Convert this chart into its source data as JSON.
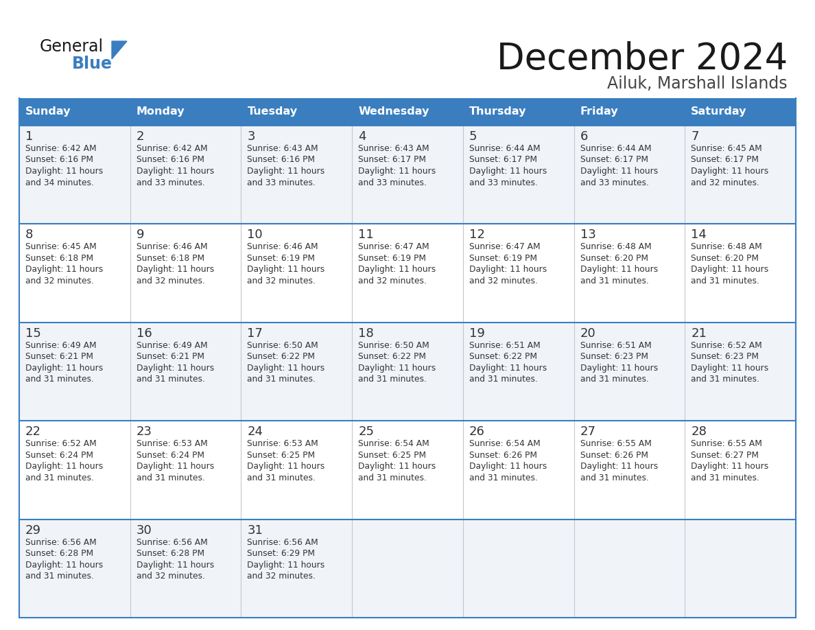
{
  "title": "December 2024",
  "subtitle": "Ailuk, Marshall Islands",
  "header_color": "#3a7ebf",
  "header_text_color": "#ffffff",
  "row_bg_odd": "#f0f4f8",
  "row_bg_even": "#ffffff",
  "border_color": "#3a7ebf",
  "col_sep_color": "#c0c8d0",
  "days_of_week": [
    "Sunday",
    "Monday",
    "Tuesday",
    "Wednesday",
    "Thursday",
    "Friday",
    "Saturday"
  ],
  "calendar_data": [
    [
      {
        "day": "1",
        "sunrise": "6:42 AM",
        "sunset": "6:16 PM",
        "daylight_h": "11 hours",
        "daylight_m": "and 34 minutes."
      },
      {
        "day": "2",
        "sunrise": "6:42 AM",
        "sunset": "6:16 PM",
        "daylight_h": "11 hours",
        "daylight_m": "and 33 minutes."
      },
      {
        "day": "3",
        "sunrise": "6:43 AM",
        "sunset": "6:16 PM",
        "daylight_h": "11 hours",
        "daylight_m": "and 33 minutes."
      },
      {
        "day": "4",
        "sunrise": "6:43 AM",
        "sunset": "6:17 PM",
        "daylight_h": "11 hours",
        "daylight_m": "and 33 minutes."
      },
      {
        "day": "5",
        "sunrise": "6:44 AM",
        "sunset": "6:17 PM",
        "daylight_h": "11 hours",
        "daylight_m": "and 33 minutes."
      },
      {
        "day": "6",
        "sunrise": "6:44 AM",
        "sunset": "6:17 PM",
        "daylight_h": "11 hours",
        "daylight_m": "and 33 minutes."
      },
      {
        "day": "7",
        "sunrise": "6:45 AM",
        "sunset": "6:17 PM",
        "daylight_h": "11 hours",
        "daylight_m": "and 32 minutes."
      }
    ],
    [
      {
        "day": "8",
        "sunrise": "6:45 AM",
        "sunset": "6:18 PM",
        "daylight_h": "11 hours",
        "daylight_m": "and 32 minutes."
      },
      {
        "day": "9",
        "sunrise": "6:46 AM",
        "sunset": "6:18 PM",
        "daylight_h": "11 hours",
        "daylight_m": "and 32 minutes."
      },
      {
        "day": "10",
        "sunrise": "6:46 AM",
        "sunset": "6:19 PM",
        "daylight_h": "11 hours",
        "daylight_m": "and 32 minutes."
      },
      {
        "day": "11",
        "sunrise": "6:47 AM",
        "sunset": "6:19 PM",
        "daylight_h": "11 hours",
        "daylight_m": "and 32 minutes."
      },
      {
        "day": "12",
        "sunrise": "6:47 AM",
        "sunset": "6:19 PM",
        "daylight_h": "11 hours",
        "daylight_m": "and 32 minutes."
      },
      {
        "day": "13",
        "sunrise": "6:48 AM",
        "sunset": "6:20 PM",
        "daylight_h": "11 hours",
        "daylight_m": "and 31 minutes."
      },
      {
        "day": "14",
        "sunrise": "6:48 AM",
        "sunset": "6:20 PM",
        "daylight_h": "11 hours",
        "daylight_m": "and 31 minutes."
      }
    ],
    [
      {
        "day": "15",
        "sunrise": "6:49 AM",
        "sunset": "6:21 PM",
        "daylight_h": "11 hours",
        "daylight_m": "and 31 minutes."
      },
      {
        "day": "16",
        "sunrise": "6:49 AM",
        "sunset": "6:21 PM",
        "daylight_h": "11 hours",
        "daylight_m": "and 31 minutes."
      },
      {
        "day": "17",
        "sunrise": "6:50 AM",
        "sunset": "6:22 PM",
        "daylight_h": "11 hours",
        "daylight_m": "and 31 minutes."
      },
      {
        "day": "18",
        "sunrise": "6:50 AM",
        "sunset": "6:22 PM",
        "daylight_h": "11 hours",
        "daylight_m": "and 31 minutes."
      },
      {
        "day": "19",
        "sunrise": "6:51 AM",
        "sunset": "6:22 PM",
        "daylight_h": "11 hours",
        "daylight_m": "and 31 minutes."
      },
      {
        "day": "20",
        "sunrise": "6:51 AM",
        "sunset": "6:23 PM",
        "daylight_h": "11 hours",
        "daylight_m": "and 31 minutes."
      },
      {
        "day": "21",
        "sunrise": "6:52 AM",
        "sunset": "6:23 PM",
        "daylight_h": "11 hours",
        "daylight_m": "and 31 minutes."
      }
    ],
    [
      {
        "day": "22",
        "sunrise": "6:52 AM",
        "sunset": "6:24 PM",
        "daylight_h": "11 hours",
        "daylight_m": "and 31 minutes."
      },
      {
        "day": "23",
        "sunrise": "6:53 AM",
        "sunset": "6:24 PM",
        "daylight_h": "11 hours",
        "daylight_m": "and 31 minutes."
      },
      {
        "day": "24",
        "sunrise": "6:53 AM",
        "sunset": "6:25 PM",
        "daylight_h": "11 hours",
        "daylight_m": "and 31 minutes."
      },
      {
        "day": "25",
        "sunrise": "6:54 AM",
        "sunset": "6:25 PM",
        "daylight_h": "11 hours",
        "daylight_m": "and 31 minutes."
      },
      {
        "day": "26",
        "sunrise": "6:54 AM",
        "sunset": "6:26 PM",
        "daylight_h": "11 hours",
        "daylight_m": "and 31 minutes."
      },
      {
        "day": "27",
        "sunrise": "6:55 AM",
        "sunset": "6:26 PM",
        "daylight_h": "11 hours",
        "daylight_m": "and 31 minutes."
      },
      {
        "day": "28",
        "sunrise": "6:55 AM",
        "sunset": "6:27 PM",
        "daylight_h": "11 hours",
        "daylight_m": "and 31 minutes."
      }
    ],
    [
      {
        "day": "29",
        "sunrise": "6:56 AM",
        "sunset": "6:28 PM",
        "daylight_h": "11 hours",
        "daylight_m": "and 31 minutes."
      },
      {
        "day": "30",
        "sunrise": "6:56 AM",
        "sunset": "6:28 PM",
        "daylight_h": "11 hours",
        "daylight_m": "and 32 minutes."
      },
      {
        "day": "31",
        "sunrise": "6:56 AM",
        "sunset": "6:29 PM",
        "daylight_h": "11 hours",
        "daylight_m": "and 32 minutes."
      },
      null,
      null,
      null,
      null
    ]
  ],
  "logo_general_color": "#1a1a1a",
  "logo_blue_color": "#3a7ebf",
  "logo_triangle_color": "#3a7ebf",
  "title_color": "#1a1a1a",
  "subtitle_color": "#444444"
}
